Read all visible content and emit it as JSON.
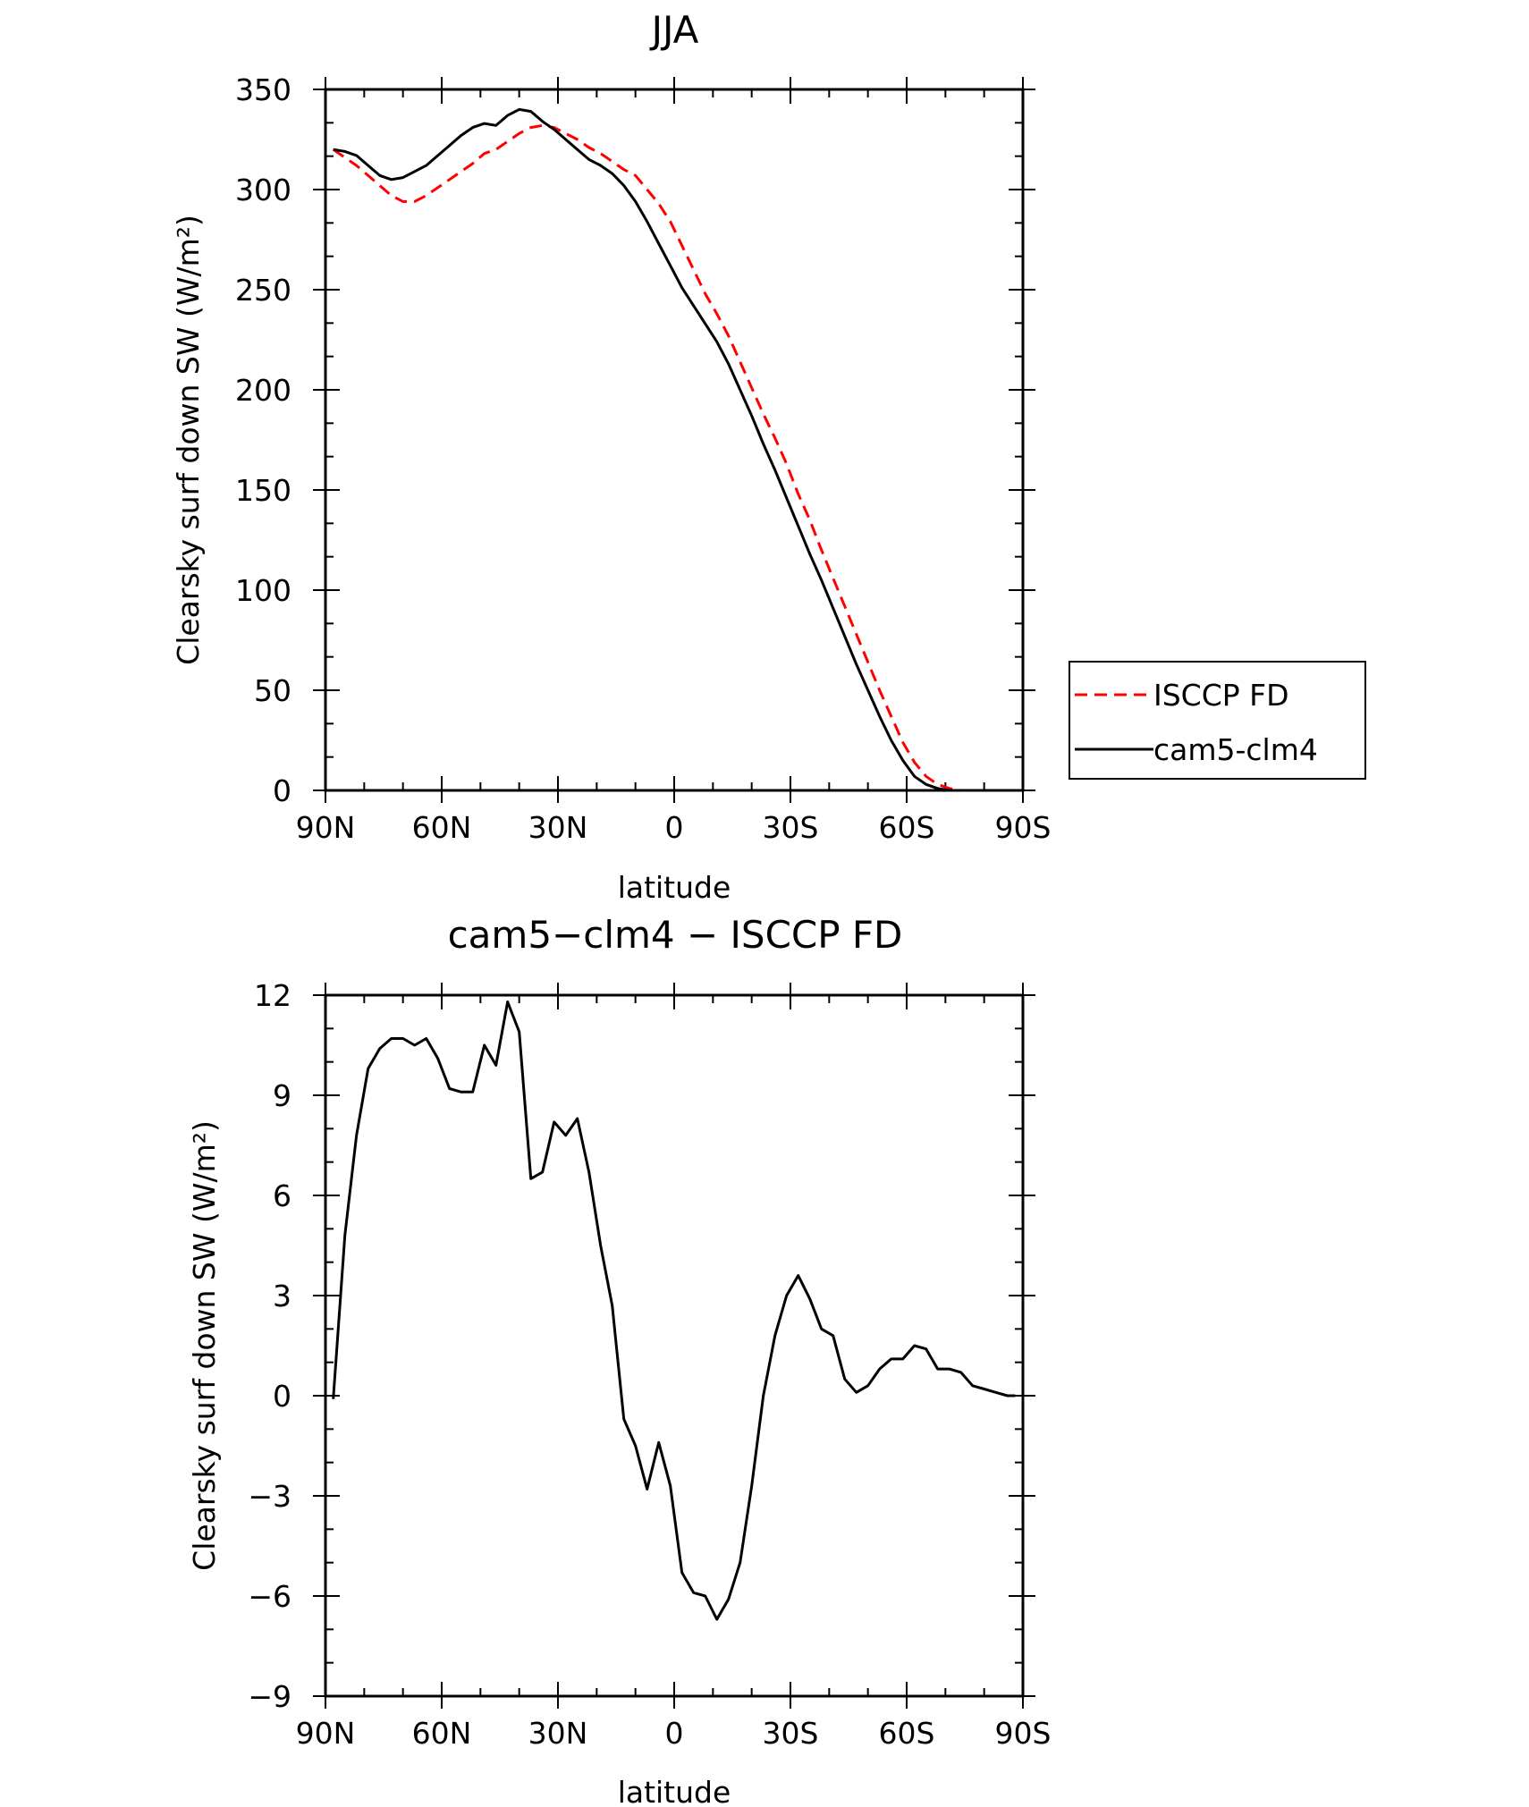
{
  "chart_data": [
    {
      "type": "line",
      "title": "JJA",
      "xlabel": "latitude",
      "ylabel": "Clearsky surf down SW (W/m²)",
      "xlim": [
        -90,
        90
      ],
      "ylim": [
        0,
        350
      ],
      "xticks": [
        -90,
        -60,
        -30,
        0,
        30,
        60,
        90
      ],
      "xtick_labels": [
        "90N",
        "60N",
        "30N",
        "0",
        "30S",
        "60S",
        "90S"
      ],
      "yticks": [
        0,
        50,
        100,
        150,
        200,
        250,
        300,
        350
      ],
      "ytick_labels": [
        "0",
        "50",
        "100",
        "150",
        "200",
        "250",
        "300",
        "350"
      ],
      "grid": false,
      "legend_position": "right",
      "series": [
        {
          "name": "ISCCP FD",
          "color": "#ff0000",
          "dash": "dashed",
          "x": [
            -88,
            -85,
            -82,
            -79,
            -76,
            -73,
            -70,
            -67,
            -64,
            -61,
            -58,
            -55,
            -52,
            -49,
            -46,
            -43,
            -40,
            -37,
            -34,
            -31,
            -28,
            -25,
            -22,
            -19,
            -16,
            -13,
            -10,
            -7,
            -4,
            -1,
            2,
            5,
            8,
            11,
            14,
            17,
            20,
            23,
            26,
            29,
            32,
            35,
            38,
            41,
            44,
            47,
            50,
            53,
            56,
            59,
            62,
            65,
            68,
            71,
            74,
            77,
            80,
            83,
            86,
            88
          ],
          "y": [
            320,
            316,
            312,
            307,
            302,
            297,
            294,
            294,
            297,
            301,
            305,
            309,
            313,
            318,
            320,
            324,
            328,
            331,
            332,
            331,
            328,
            325,
            321,
            318,
            314,
            310,
            307,
            300,
            293,
            284,
            272,
            260,
            248,
            238,
            227,
            214,
            201,
            188,
            176,
            163,
            148,
            135,
            120,
            106,
            92,
            78,
            64,
            50,
            37,
            24,
            14,
            7,
            3,
            1,
            0,
            0,
            0,
            0,
            0,
            0
          ]
        },
        {
          "name": "cam5-clm4",
          "color": "#000000",
          "dash": "solid",
          "x": [
            -88,
            -85,
            -82,
            -79,
            -76,
            -73,
            -70,
            -67,
            -64,
            -61,
            -58,
            -55,
            -52,
            -49,
            -46,
            -43,
            -40,
            -37,
            -34,
            -31,
            -28,
            -25,
            -22,
            -19,
            -16,
            -13,
            -10,
            -7,
            -4,
            -1,
            2,
            5,
            8,
            11,
            14,
            17,
            20,
            23,
            26,
            29,
            32,
            35,
            38,
            41,
            44,
            47,
            50,
            53,
            56,
            59,
            62,
            65,
            68,
            71,
            74,
            77,
            80,
            83,
            86,
            88
          ],
          "y": [
            320,
            319,
            317,
            312,
            307,
            305,
            306,
            309,
            312,
            317,
            322,
            327,
            331,
            333,
            332,
            337,
            340,
            339,
            334,
            330,
            325,
            320,
            315,
            312,
            308,
            302,
            294,
            284,
            273,
            262,
            251,
            242,
            233,
            224,
            213,
            200,
            187,
            173,
            160,
            146,
            132,
            118,
            105,
            91,
            77,
            63,
            50,
            37,
            25,
            15,
            7,
            3,
            1,
            0,
            0,
            0,
            0,
            0,
            0,
            0
          ]
        }
      ]
    },
    {
      "type": "line",
      "title": "cam5−clm4 − ISCCP FD",
      "xlabel": "latitude",
      "ylabel": "Clearsky surf down SW (W/m²)",
      "xlim": [
        -90,
        90
      ],
      "ylim": [
        -9,
        12
      ],
      "xticks": [
        -90,
        -60,
        -30,
        0,
        30,
        60,
        90
      ],
      "xtick_labels": [
        "90N",
        "60N",
        "30N",
        "0",
        "30S",
        "60S",
        "90S"
      ],
      "yticks": [
        -9,
        -6,
        -3,
        0,
        3,
        6,
        9,
        12
      ],
      "ytick_labels": [
        "−9",
        "−6",
        "−3",
        "0",
        "3",
        "6",
        "9",
        "12"
      ],
      "grid": false,
      "series": [
        {
          "color": "#000000",
          "dash": "solid",
          "x": [
            -88,
            -85,
            -82,
            -79,
            -76,
            -73,
            -70,
            -67,
            -64,
            -61,
            -58,
            -55,
            -52,
            -49,
            -46,
            -43,
            -40,
            -37,
            -34,
            -31,
            -28,
            -25,
            -22,
            -19,
            -16,
            -13,
            -10,
            -7,
            -4,
            -1,
            2,
            5,
            8,
            11,
            14,
            17,
            20,
            23,
            26,
            29,
            32,
            35,
            38,
            41,
            44,
            47,
            50,
            53,
            56,
            59,
            62,
            65,
            68,
            71,
            74,
            77,
            80,
            83,
            86,
            88
          ],
          "y": [
            -0.1,
            4.8,
            7.8,
            9.8,
            10.4,
            10.7,
            10.7,
            10.5,
            10.7,
            10.1,
            9.2,
            9.1,
            9.1,
            10.5,
            9.9,
            11.8,
            10.9,
            6.5,
            6.7,
            8.2,
            7.8,
            8.3,
            6.7,
            4.5,
            2.7,
            -0.7,
            -1.5,
            -2.8,
            -1.4,
            -2.7,
            -5.3,
            -5.9,
            -6.0,
            -6.7,
            -6.1,
            -5.0,
            -2.7,
            0.0,
            1.8,
            3.0,
            3.6,
            2.9,
            2.0,
            1.8,
            0.5,
            0.1,
            0.3,
            0.8,
            1.1,
            1.1,
            1.5,
            1.4,
            0.8,
            0.8,
            0.7,
            0.3,
            0.2,
            0.1,
            0.0,
            0.0
          ]
        }
      ]
    }
  ]
}
